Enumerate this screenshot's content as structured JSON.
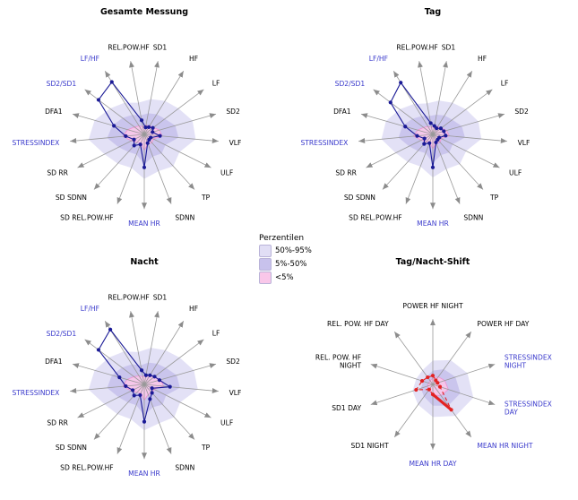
{
  "colors": {
    "band_outer": "#e1def5",
    "band_mid": "#c8c2ec",
    "band_inner": "#f9c7e9",
    "band_inner_stroke": "#ef8fd0",
    "series_navy": "#1a1a96",
    "series_red": "#e32222",
    "label_blue": "#3a3acc",
    "label_black": "#000000",
    "spoke": "#999999"
  },
  "legend": {
    "title": "Perzentilen",
    "items": [
      {
        "label": "50%-95%",
        "color": "#e1def5"
      },
      {
        "label": "5%-50%",
        "color": "#c8c2ec"
      },
      {
        "label": "<5%",
        "color": "#f9c7e9"
      }
    ]
  },
  "chart_data": [
    {
      "type": "radar",
      "title": "Gesamte Messung",
      "angle_offset_deg": 10.588,
      "axes": [
        {
          "label": "SD1",
          "blue": false
        },
        {
          "label": "HF",
          "blue": false
        },
        {
          "label": "LF",
          "blue": false
        },
        {
          "label": "SD2",
          "blue": false
        },
        {
          "label": "VLF",
          "blue": false
        },
        {
          "label": "ULF",
          "blue": false
        },
        {
          "label": "TP",
          "blue": false
        },
        {
          "label": "SDNN",
          "blue": false
        },
        {
          "label": "MEAN HR",
          "blue": true
        },
        {
          "label": "SD REL.POW.HF",
          "blue": false
        },
        {
          "label": "SD SDNN",
          "blue": false
        },
        {
          "label": "SD RR",
          "blue": false
        },
        {
          "label": "STRESSINDEX",
          "blue": true
        },
        {
          "label": "DFA1",
          "blue": false
        },
        {
          "label": "SD2/SD1",
          "blue": true
        },
        {
          "label": "LF/HF",
          "blue": true
        },
        {
          "label": "REL.POW.HF",
          "blue": false
        }
      ],
      "bands": [
        {
          "name": "50%-95%",
          "values": [
            0.5,
            0.55,
            0.6,
            0.7,
            0.72,
            0.55,
            0.6,
            0.55,
            0.62,
            0.5,
            0.55,
            0.62,
            0.78,
            0.72,
            0.6,
            0.52,
            0.45
          ]
        },
        {
          "name": "5%-50%",
          "values": [
            0.3,
            0.33,
            0.36,
            0.45,
            0.48,
            0.33,
            0.36,
            0.33,
            0.42,
            0.3,
            0.33,
            0.4,
            0.52,
            0.46,
            0.38,
            0.32,
            0.27
          ]
        },
        {
          "name": "<5%",
          "values": [
            0.13,
            0.14,
            0.16,
            0.22,
            0.25,
            0.14,
            0.16,
            0.14,
            0.22,
            0.13,
            0.15,
            0.2,
            0.3,
            0.24,
            0.17,
            0.14,
            0.11
          ]
        }
      ],
      "series": {
        "color_key": "series_navy",
        "dashed": false,
        "values": [
          0.1,
          0.12,
          0.15,
          0.12,
          0.22,
          0.1,
          0.1,
          0.13,
          0.46,
          0.15,
          0.21,
          0.16,
          0.26,
          0.44,
          0.8,
          0.86,
          0.2
        ]
      }
    },
    {
      "type": "radar",
      "title": "Tag",
      "angle_offset_deg": 10.588,
      "axes": [
        {
          "label": "SD1",
          "blue": false
        },
        {
          "label": "HF",
          "blue": false
        },
        {
          "label": "LF",
          "blue": false
        },
        {
          "label": "SD2",
          "blue": false
        },
        {
          "label": "VLF",
          "blue": false
        },
        {
          "label": "ULF",
          "blue": false
        },
        {
          "label": "TP",
          "blue": false
        },
        {
          "label": "SDNN",
          "blue": false
        },
        {
          "label": "MEAN HR",
          "blue": true
        },
        {
          "label": "SD REL.POW.HF",
          "blue": false
        },
        {
          "label": "SD SDNN",
          "blue": false
        },
        {
          "label": "SD RR",
          "blue": false
        },
        {
          "label": "STRESSINDEX",
          "blue": true
        },
        {
          "label": "DFA1",
          "blue": false
        },
        {
          "label": "SD2/SD1",
          "blue": true
        },
        {
          "label": "LF/HF",
          "blue": true
        },
        {
          "label": "REL.POW.HF",
          "blue": false
        }
      ],
      "bands": [
        {
          "name": "50%-95%",
          "values": [
            0.48,
            0.52,
            0.58,
            0.66,
            0.68,
            0.52,
            0.56,
            0.52,
            0.6,
            0.48,
            0.52,
            0.58,
            0.72,
            0.68,
            0.58,
            0.5,
            0.44
          ]
        },
        {
          "name": "5%-50%",
          "values": [
            0.28,
            0.31,
            0.34,
            0.42,
            0.45,
            0.31,
            0.34,
            0.31,
            0.4,
            0.28,
            0.31,
            0.37,
            0.48,
            0.44,
            0.36,
            0.3,
            0.26
          ]
        },
        {
          "name": "<5%",
          "values": [
            0.12,
            0.13,
            0.15,
            0.2,
            0.23,
            0.13,
            0.15,
            0.13,
            0.2,
            0.12,
            0.14,
            0.18,
            0.27,
            0.22,
            0.16,
            0.13,
            0.1
          ]
        }
      ],
      "series": {
        "color_key": "series_navy",
        "dashed": false,
        "values": [
          0.12,
          0.1,
          0.14,
          0.16,
          0.18,
          0.1,
          0.1,
          0.12,
          0.46,
          0.13,
          0.18,
          0.13,
          0.22,
          0.4,
          0.74,
          0.85,
          0.16
        ]
      }
    },
    {
      "type": "radar",
      "title": "Nacht",
      "angle_offset_deg": 10.588,
      "axes": [
        {
          "label": "SD1",
          "blue": false
        },
        {
          "label": "HF",
          "blue": false
        },
        {
          "label": "LF",
          "blue": false
        },
        {
          "label": "SD2",
          "blue": false
        },
        {
          "label": "VLF",
          "blue": false
        },
        {
          "label": "ULF",
          "blue": false
        },
        {
          "label": "TP",
          "blue": false
        },
        {
          "label": "SDNN",
          "blue": false
        },
        {
          "label": "MEAN HR",
          "blue": true
        },
        {
          "label": "SD REL.POW.HF",
          "blue": false
        },
        {
          "label": "SD SDNN",
          "blue": false
        },
        {
          "label": "SD RR",
          "blue": false
        },
        {
          "label": "STRESSINDEX",
          "blue": true
        },
        {
          "label": "DFA1",
          "blue": false
        },
        {
          "label": "SD2/SD1",
          "blue": true
        },
        {
          "label": "LF/HF",
          "blue": true
        },
        {
          "label": "REL.POW.HF",
          "blue": false
        }
      ],
      "bands": [
        {
          "name": "50%-95%",
          "values": [
            0.52,
            0.56,
            0.62,
            0.72,
            0.75,
            0.56,
            0.62,
            0.58,
            0.64,
            0.52,
            0.56,
            0.62,
            0.78,
            0.72,
            0.62,
            0.54,
            0.46
          ]
        },
        {
          "name": "5%-50%",
          "values": [
            0.31,
            0.34,
            0.38,
            0.47,
            0.5,
            0.34,
            0.38,
            0.34,
            0.43,
            0.31,
            0.34,
            0.4,
            0.52,
            0.47,
            0.39,
            0.33,
            0.27
          ]
        },
        {
          "name": "<5%",
          "values": [
            0.13,
            0.15,
            0.17,
            0.24,
            0.27,
            0.15,
            0.17,
            0.15,
            0.22,
            0.13,
            0.15,
            0.2,
            0.3,
            0.25,
            0.18,
            0.14,
            0.11
          ]
        }
      ],
      "series": {
        "color_key": "series_navy",
        "dashed": false,
        "values": [
          0.13,
          0.15,
          0.18,
          0.22,
          0.36,
          0.12,
          0.16,
          0.22,
          0.52,
          0.16,
          0.21,
          0.18,
          0.26,
          0.36,
          0.8,
          0.9,
          0.2
        ]
      }
    },
    {
      "type": "radar",
      "title": "Tag/Nacht-Shift",
      "angle_offset_deg": 0,
      "axes": [
        {
          "label": "POWER HF NIGHT",
          "blue": false
        },
        {
          "label": "POWER HF DAY",
          "blue": false
        },
        {
          "label": "STRESSINDEX\nNIGHT",
          "blue": true
        },
        {
          "label": "STRESSINDEX\nDAY",
          "blue": true
        },
        {
          "label": "MEAN HR NIGHT",
          "blue": true
        },
        {
          "label": "MEAN HR DAY",
          "blue": true
        },
        {
          "label": "SD1 NIGHT",
          "blue": false
        },
        {
          "label": "SD1 DAY",
          "blue": false
        },
        {
          "label": "REL. POW. HF\nNIGHT",
          "blue": false
        },
        {
          "label": "REL. POW. HF DAY",
          "blue": false
        }
      ],
      "bands": [
        {
          "name": "50%-95%",
          "values": [
            0.38,
            0.48,
            0.58,
            0.68,
            0.62,
            0.52,
            0.4,
            0.34,
            0.28,
            0.28
          ]
        },
        {
          "name": "5%-50%",
          "values": [
            0.22,
            0.3,
            0.38,
            0.46,
            0.42,
            0.34,
            0.24,
            0.2,
            0.16,
            0.16
          ]
        },
        {
          "name": "<5%",
          "values": [
            0.1,
            0.15,
            0.2,
            0.26,
            0.22,
            0.17,
            0.11,
            0.09,
            0.07,
            0.07
          ]
        }
      ],
      "series": {
        "color_key": "series_red",
        "dashed": true,
        "values": [
          0.14,
          0.08,
          0.08,
          0.12,
          0.5,
          0.16,
          0.1,
          0.28,
          0.18,
          0.14
        ]
      },
      "highlight_segment": {
        "from": 5,
        "to": 4
      }
    }
  ]
}
